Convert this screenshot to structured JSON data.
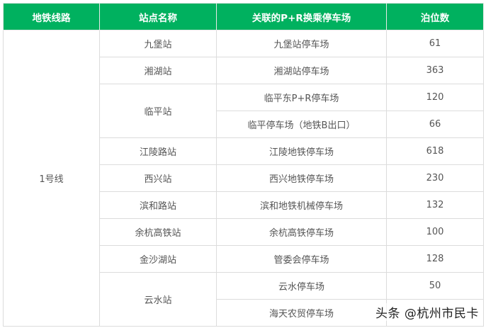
{
  "header": [
    "地铁线路",
    "站点名称",
    "关联的P+R换乘停车场",
    "泊位数"
  ],
  "line": "1号线",
  "stations": [
    {
      "name": "九堡站",
      "lots": [
        {
          "lot": "九堡站停车场",
          "spaces": "61"
        }
      ]
    },
    {
      "name": "湘湖站",
      "lots": [
        {
          "lot": "湘湖站停车场",
          "spaces": "363"
        }
      ]
    },
    {
      "name": "临平站",
      "lots": [
        {
          "lot": "临平东P+R停车场",
          "spaces": "120"
        },
        {
          "lot": "临平停车场（地铁B出口）",
          "spaces": "66"
        }
      ]
    },
    {
      "name": "江陵路站",
      "lots": [
        {
          "lot": "江陵地铁停车场",
          "spaces": "618"
        }
      ]
    },
    {
      "name": "西兴站",
      "lots": [
        {
          "lot": "西兴地铁停车场",
          "spaces": "230"
        }
      ]
    },
    {
      "name": "滨和路站",
      "lots": [
        {
          "lot": "滨和地铁机械停车场",
          "spaces": "132"
        }
      ]
    },
    {
      "name": "余杭高铁站",
      "lots": [
        {
          "lot": "余杭高铁停车场",
          "spaces": "100"
        }
      ]
    },
    {
      "name": "金沙湖站",
      "lots": [
        {
          "lot": "管委会停车场",
          "spaces": "128"
        }
      ]
    },
    {
      "name": "云水站",
      "lots": [
        {
          "lot": "云水停车场",
          "spaces": "50"
        },
        {
          "lot": "海天农贸停车场",
          "spaces": ""
        }
      ]
    }
  ],
  "watermark": "头条 @杭州市民卡",
  "colors": {
    "header_bg": "#00b15f"
  }
}
